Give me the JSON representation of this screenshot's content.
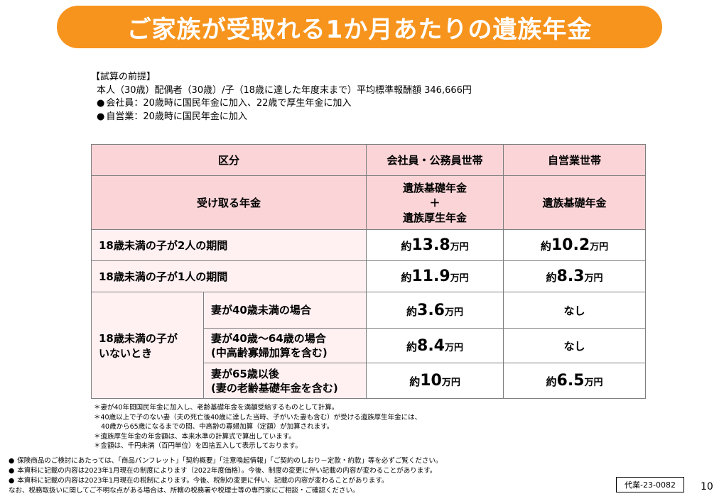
{
  "title": "ご家族が受取れる1か月あたりの遺族年金",
  "premise": {
    "heading": "【試算の前提】",
    "line1": "本人（30歳）配偶者（30歳）/子（18歳に達した年度末まで）平均標準報酬額 346,666円",
    "bullet1": "会社員：20歳時に国民年金に加入、22歳で厚生年金に加入",
    "bullet2": "自営業：20歳時に国民年金に加入"
  },
  "table": {
    "headers": {
      "category": "区分",
      "employee": "会社員・公務員世帯",
      "selfemployed": "自営業世帯"
    },
    "pension_row": {
      "label": "受け取る年金",
      "employee_line1": "遺族基礎年金",
      "employee_plus": "＋",
      "employee_line2": "遺族厚生年金",
      "selfemployed": "遺族基礎年金"
    },
    "rows": [
      {
        "label": "18歳未満の子が2人の期間",
        "employee": {
          "prefix": "約",
          "value": "13.8",
          "unit": "万円"
        },
        "selfemployed": {
          "prefix": "約",
          "value": "10.2",
          "unit": "万円"
        }
      },
      {
        "label": "18歳未満の子が1人の期間",
        "employee": {
          "prefix": "約",
          "value": "11.9",
          "unit": "万円"
        },
        "selfemployed": {
          "prefix": "約",
          "value": "8.3",
          "unit": "万円"
        }
      }
    ],
    "no_child": {
      "label_line1": "18歳未満の子が",
      "label_line2": "いないとき",
      "subrows": [
        {
          "line1": "妻が40歳未満の場合",
          "line2": "",
          "employee": {
            "prefix": "約",
            "value": "3.6",
            "unit": "万円"
          },
          "selfemployed": "なし"
        },
        {
          "line1": "妻が40歳～64歳の場合",
          "line2": "(中高齢寡婦加算を含む)",
          "employee": {
            "prefix": "約",
            "value": "8.4",
            "unit": "万円"
          },
          "selfemployed": "なし"
        },
        {
          "line1": "妻が65歳以後",
          "line2": "(妻の老齢基礎年金を含む)",
          "employee": {
            "prefix": "約",
            "value": "10",
            "unit": "万円"
          },
          "selfemployed": {
            "prefix": "約",
            "value": "6.5",
            "unit": "万円"
          }
        }
      ]
    }
  },
  "notes": [
    "＊妻が40年間国民年金に加入し、老齢基礎年金を満額受給するものとして計算。",
    "＊40歳以上で子のない妻（夫の死亡後40歳に達した当時、子がいた妻も含む）が受ける遺族厚生年金には、",
    "40歳から65歳になるまでの間、中高齢の寡婦加算（定額）が加算されます。",
    "＊遺族厚生年金の年金額は、本来水準の計算式で算出しています。",
    "＊金額は、千円未満（百円単位）を四捨五入して表示しております。"
  ],
  "footer": {
    "line1": "保険商品のご検討にあたっては、「商品パンフレット」「契約概要」「注意喚起情報」「ご契約のしおり－定款・約款」等を必ずご覧ください。",
    "line2": "本資料に記載の内容は2023年1月現在の制度によります（2022年度価格）。今後、制度の変更に伴い記載の内容が変わることがあります。",
    "line3": "本資料に記載の内容は2023年1月現在の税制によります。今後、税制の変更に伴い、記載の内容が変わることがあります。",
    "line4": "なお、税務取扱いに関してご不明な点がある場合は、所轄の税務署や税理士等の専門家にご相談・ご確認ください。",
    "code": "代業-23-0082",
    "page": "10"
  },
  "colors": {
    "title_bg": "#f7941d",
    "header_bg": "#fbd4d7",
    "row_bg": "#fff0f2"
  }
}
